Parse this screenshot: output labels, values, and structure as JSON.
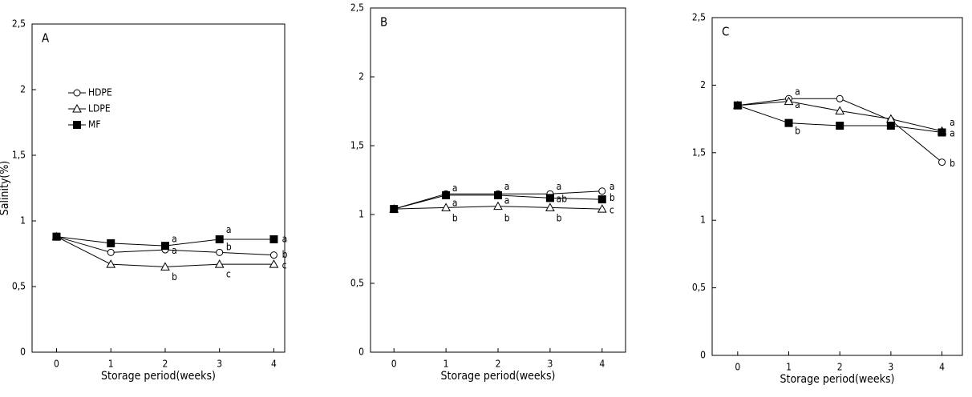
{
  "chart_data": [
    {
      "type": "line",
      "title": "A",
      "y_label": "Salinity(%)",
      "x_label": "Storage period(weeks)",
      "x": [
        0,
        1,
        2,
        3,
        4
      ],
      "xlim": [
        -0.45,
        4.2
      ],
      "xticks": [
        0,
        1,
        2,
        3,
        4
      ],
      "ylim": [
        0,
        2.5
      ],
      "yticks": [
        0,
        {
          "value": 0.5,
          "label": "0,5"
        },
        1,
        {
          "value": 1.5,
          "label": "1,5"
        },
        2,
        {
          "value": 2.5,
          "label": "2,5"
        }
      ],
      "legend": "upper left",
      "series": [
        {
          "name": "HDPE",
          "color": "#000000",
          "marker": "circle",
          "values": [
            0.88,
            0.76,
            0.78,
            0.76,
            0.74
          ]
        },
        {
          "name": "LDPE",
          "color": "#000000",
          "marker": "triangle",
          "values": [
            0.88,
            0.67,
            0.65,
            0.67,
            0.67
          ]
        },
        {
          "name": "MF",
          "color": "#000000",
          "marker": "square",
          "values": [
            0.88,
            0.83,
            0.81,
            0.86,
            0.86
          ]
        }
      ],
      "annotations": [
        {
          "text": "a",
          "x": 2.12,
          "y": 0.86
        },
        {
          "text": "a",
          "x": 2.12,
          "y": 0.77
        },
        {
          "text": "b",
          "x": 2.12,
          "y": 0.57
        },
        {
          "text": "a",
          "x": 3.12,
          "y": 0.93
        },
        {
          "text": "b",
          "x": 3.12,
          "y": 0.8
        },
        {
          "text": "c",
          "x": 3.12,
          "y": 0.59
        },
        {
          "text": "a",
          "x": 4.15,
          "y": 0.86
        },
        {
          "text": "b",
          "x": 4.15,
          "y": 0.74
        },
        {
          "text": "c",
          "x": 4.15,
          "y": 0.66
        }
      ]
    },
    {
      "type": "line",
      "title": "B",
      "x_label": "Storage period(weeks)",
      "x": [
        0,
        1,
        2,
        3,
        4
      ],
      "xlim": [
        -0.45,
        4.45
      ],
      "xticks": [
        0,
        1,
        2,
        3,
        4
      ],
      "ylim": [
        0,
        2.5
      ],
      "yticks": [
        0,
        {
          "value": 0.5,
          "label": "0,5"
        },
        1,
        {
          "value": 1.5,
          "label": "1,5"
        },
        2,
        {
          "value": 2.5,
          "label": "2,5"
        }
      ],
      "series": [
        {
          "color": "#000000",
          "marker": "circle",
          "values": [
            1.04,
            1.15,
            1.15,
            1.15,
            1.17
          ]
        },
        {
          "color": "#000000",
          "marker": "triangle",
          "values": [
            1.04,
            1.05,
            1.06,
            1.05,
            1.04
          ]
        },
        {
          "color": "#000000",
          "marker": "square",
          "values": [
            1.04,
            1.14,
            1.14,
            1.12,
            1.11
          ]
        }
      ],
      "annotations": [
        {
          "text": "a",
          "x": 1.12,
          "y": 1.19
        },
        {
          "text": "a",
          "x": 1.12,
          "y": 1.08
        },
        {
          "text": "b",
          "x": 1.12,
          "y": 0.97
        },
        {
          "text": "a",
          "x": 2.12,
          "y": 1.2
        },
        {
          "text": "a",
          "x": 2.12,
          "y": 1.1
        },
        {
          "text": "b",
          "x": 2.12,
          "y": 0.97
        },
        {
          "text": "a",
          "x": 3.12,
          "y": 1.2
        },
        {
          "text": "ab",
          "x": 3.12,
          "y": 1.11
        },
        {
          "text": "b",
          "x": 3.12,
          "y": 0.97
        },
        {
          "text": "a",
          "x": 4.14,
          "y": 1.2
        },
        {
          "text": "b",
          "x": 4.14,
          "y": 1.12
        },
        {
          "text": "c",
          "x": 4.14,
          "y": 1.03
        }
      ]
    },
    {
      "type": "line",
      "title": "C",
      "x_label": "Storage period(weeks)",
      "x": [
        0,
        1,
        2,
        3,
        4
      ],
      "xlim": [
        -0.5,
        4.4
      ],
      "xticks": [
        0,
        1,
        2,
        3,
        4
      ],
      "ylim": [
        0,
        2.5
      ],
      "yticks": [
        0,
        {
          "value": 0.5,
          "label": "0,5"
        },
        1,
        {
          "value": 1.5,
          "label": "1,5"
        },
        2,
        {
          "value": 2.5,
          "label": "2,5"
        }
      ],
      "series": [
        {
          "color": "#000000",
          "marker": "circle",
          "values": [
            1.85,
            1.9,
            1.9,
            1.74,
            1.43
          ]
        },
        {
          "color": "#000000",
          "marker": "triangle",
          "values": [
            1.85,
            1.88,
            1.81,
            1.75,
            1.66
          ]
        },
        {
          "color": "#000000",
          "marker": "square",
          "values": [
            1.85,
            1.72,
            1.7,
            1.7,
            1.65
          ]
        }
      ],
      "annotations": [
        {
          "text": "a",
          "x": 1.12,
          "y": 1.95
        },
        {
          "text": "a",
          "x": 1.12,
          "y": 1.85
        },
        {
          "text": "b",
          "x": 1.12,
          "y": 1.66
        },
        {
          "text": "a",
          "x": 4.15,
          "y": 1.72
        },
        {
          "text": "a",
          "x": 4.15,
          "y": 1.64
        },
        {
          "text": "b",
          "x": 4.15,
          "y": 1.42
        }
      ]
    }
  ]
}
